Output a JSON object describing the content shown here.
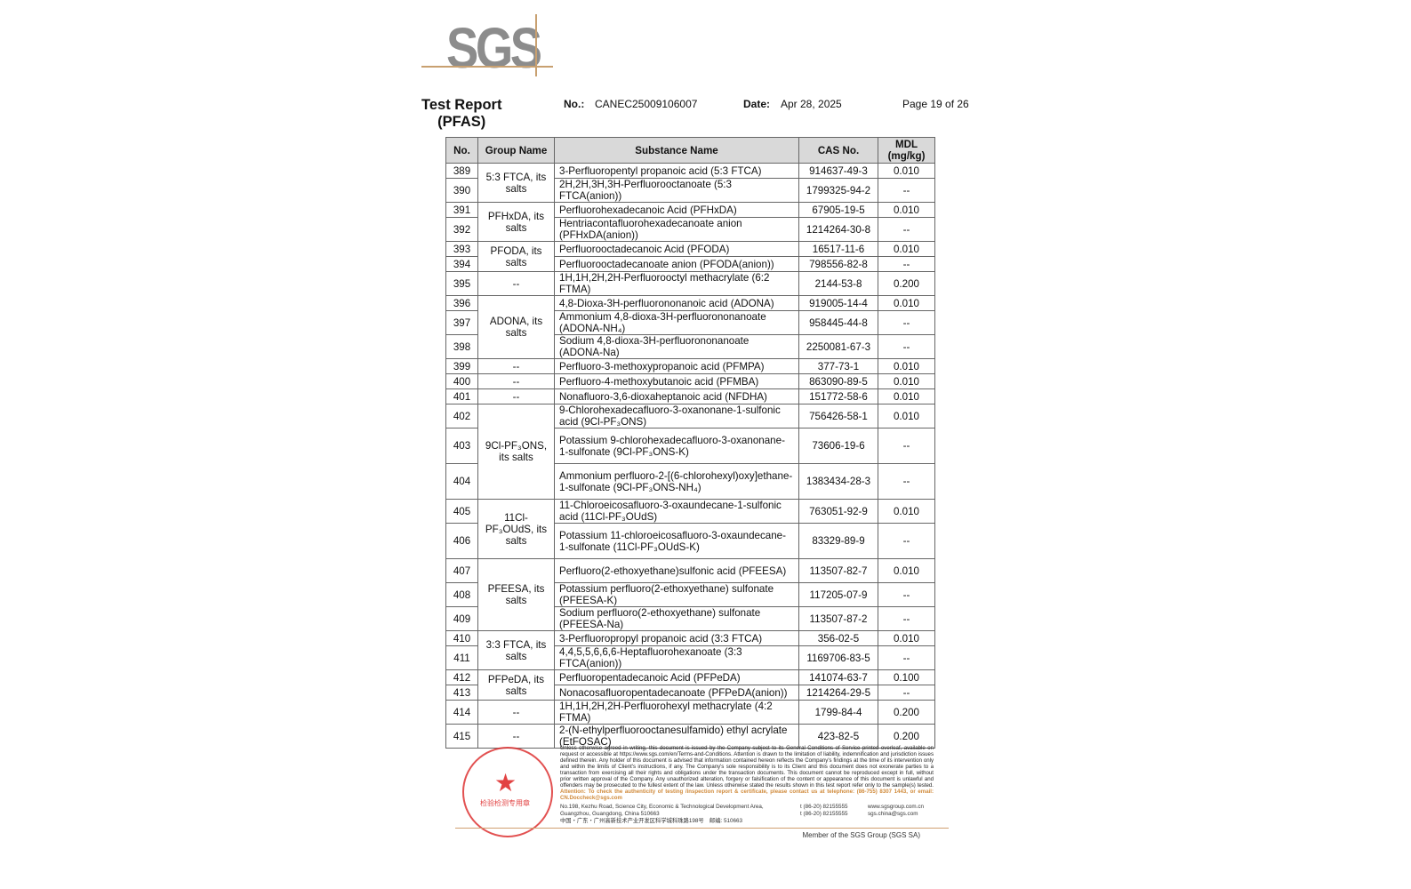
{
  "logo": "SGS",
  "header": {
    "title_line1": "Test Report",
    "title_line2": "(PFAS)",
    "no_label": "No.:",
    "no_value": "CANEC25009106007",
    "date_label": "Date:",
    "date_value": "Apr 28, 2025",
    "page": "Page 19 of 26"
  },
  "table": {
    "columns": [
      "No.",
      "Group Name",
      "Substance Name",
      "CAS No.",
      "MDL (mg/kg)"
    ],
    "groups": [
      {
        "name": "5:3 FTCA, its salts",
        "rows": [
          [
            "389",
            "3-Perfluoropentyl propanoic acid (5:3 FTCA)",
            "914637-49-3",
            "0.010"
          ],
          [
            "390",
            "2H,2H,3H,3H-Perfluorooctanoate (5:3 FTCA(anion))",
            "1799325-94-2",
            "--"
          ]
        ]
      },
      {
        "name": "PFHxDA, its salts",
        "rows": [
          [
            "391",
            "Perfluorohexadecanoic Acid (PFHxDA)",
            "67905-19-5",
            "0.010"
          ],
          [
            "392",
            "Hentriacontafluorohexadecanoate anion (PFHxDA(anion))",
            "1214264-30-8",
            "--"
          ]
        ]
      },
      {
        "name": "PFODA, its salts",
        "rows": [
          [
            "393",
            "Perfluorooctadecanoic Acid (PFODA)",
            "16517-11-6",
            "0.010"
          ],
          [
            "394",
            "Perfluorooctadecanoate anion (PFODA(anion))",
            "798556-82-8",
            "--"
          ]
        ]
      },
      {
        "name": "--",
        "rows": [
          [
            "395",
            "1H,1H,2H,2H-Perfluorooctyl methacrylate (6:2 FTMA)",
            "2144-53-8",
            "0.200"
          ]
        ]
      },
      {
        "name": "ADONA, its salts",
        "rows": [
          [
            "396",
            "4,8-Dioxa-3H-perfluorononanoic acid (ADONA)",
            "919005-14-4",
            "0.010"
          ],
          [
            "397",
            "Ammonium 4,8-dioxa-3H-perfluorononanoate (ADONA-NH₄)",
            "958445-44-8",
            "--"
          ],
          [
            "398",
            "Sodium 4,8-dioxa-3H-perfluorononanoate (ADONA-Na)",
            "2250081-67-3",
            "--"
          ]
        ]
      },
      {
        "name": "--",
        "rows": [
          [
            "399",
            "Perfluoro-3-methoxypropanoic acid (PFMPA)",
            "377-73-1",
            "0.010"
          ]
        ]
      },
      {
        "name": "--",
        "rows": [
          [
            "400",
            "Perfluoro-4-methoxybutanoic acid (PFMBA)",
            "863090-89-5",
            "0.010"
          ]
        ]
      },
      {
        "name": "--",
        "rows": [
          [
            "401",
            "Nonafluoro-3,6-dioxaheptanoic acid (NFDHA)",
            "151772-58-6",
            "0.010"
          ]
        ]
      },
      {
        "name": "9Cl-PF₃ONS, its salts",
        "rows": [
          [
            "402",
            "9-Chlorohexadecafluoro-3-oxanonane-1-sulfonic acid (9Cl-PF₃ONS)",
            "756426-58-1",
            "0.010"
          ],
          [
            "403",
            "Potassium 9-chlorohexadecafluoro-3-oxanonane-1-sulfonate (9Cl-PF₃ONS-K)",
            "73606-19-6",
            "--"
          ],
          [
            "404",
            "Ammonium perfluoro-2-[(6-chlorohexyl)oxy]ethane-1-sulfonate (9Cl-PF₃ONS-NH₄)",
            "1383434-28-3",
            "--"
          ]
        ]
      },
      {
        "name": "11Cl-PF₃OUdS, its salts",
        "rows": [
          [
            "405",
            "11-Chloroeicosafluoro-3-oxaundecane-1-sulfonic acid (11Cl-PF₃OUdS)",
            "763051-92-9",
            "0.010"
          ],
          [
            "406",
            "Potassium 11-chloroeicosafluoro-3-oxaundecane-1-sulfonate (11Cl-PF₃OUdS-K)",
            "83329-89-9",
            "--"
          ]
        ]
      },
      {
        "name": "PFEESA, its salts",
        "rows": [
          [
            "407",
            "Perfluoro(2-ethoxyethane)sulfonic acid (PFEESA)",
            "113507-82-7",
            "0.010"
          ],
          [
            "408",
            "Potassium perfluoro(2-ethoxyethane) sulfonate (PFEESA-K)",
            "117205-07-9",
            "--"
          ],
          [
            "409",
            "Sodium perfluoro(2-ethoxyethane) sulfonate (PFEESA-Na)",
            "113507-87-2",
            "--"
          ]
        ]
      },
      {
        "name": "3:3 FTCA, its salts",
        "rows": [
          [
            "410",
            "3-Perfluoropropyl propanoic acid (3:3 FTCA)",
            "356-02-5",
            "0.010"
          ],
          [
            "411",
            "4,4,5,5,6,6,6-Heptafluorohexanoate (3:3 FTCA(anion))",
            "1169706-83-5",
            "--"
          ]
        ]
      },
      {
        "name": "PFPeDA, its salts",
        "rows": [
          [
            "412",
            "Perfluoropentadecanoic Acid (PFPeDA)",
            "141074-63-7",
            "0.100"
          ],
          [
            "413",
            "Nonacosafluoropentadecanoate (PFPeDA(anion))",
            "1214264-29-5",
            "--"
          ]
        ]
      },
      {
        "name": "--",
        "rows": [
          [
            "414",
            "1H,1H,2H,2H-Perfluorohexyl methacrylate (4:2 FTMA)",
            "1799-84-4",
            "0.200"
          ]
        ]
      },
      {
        "name": "--",
        "rows": [
          [
            "415",
            "2-(N-ethylperfluorooctanesulfamido) ethyl acrylate (EtFOSAC)",
            "423-82-5",
            "0.200"
          ]
        ]
      }
    ]
  },
  "footer": {
    "disclaimer": "Unless otherwise agreed in writing, this document is issued by the Company subject to its General Conditions of Service printed overleaf, available on request or accessible at https://www.sgs.com/en/Terms-and-Conditions. Attention is drawn to the limitation of liability, indemnification and jurisdiction issues defined therein. Any holder of this document is advised that information contained hereon reflects the Company's findings at the time of its intervention only and within the limits of Client's instructions, if any. The Company's sole responsibility is to its Client and this document does not exonerate parties to a transaction from exercising all their rights and obligations under the transaction documents. This document cannot be reproduced except in full, without prior written approval of the Company. Any unauthorized alteration, forgery or falsification of the content or appearance of this document is unlawful and offenders may be prosecuted to the fullest extent of the law. Unless otherwise stated the results shown in this test report refer only to the sample(s) tested.",
    "attention": "Attention: To check the authenticity of testing /inspection report & certificate, please contact us at telephone: (86-755) 8307 1443, or email: CN.Doccheck@sgs.com",
    "address_en": "No.198, Kezhu Road, Science City, Economic & Technological Development Area, Guangzhou, Guangdong, China 510663",
    "address_cn": "中国・广东・广州高新技术产业开发区科学城科珠路198号　邮编: 510663",
    "tel1": "t (86-20) 82155555",
    "tel2": "t (86-20) 82155555",
    "web": "www.sgsgroup.com.cn",
    "email": "sgs.china@sgs.com",
    "member": "Member of the SGS Group (SGS SA)",
    "stamp_text": "检验检测专用章"
  }
}
